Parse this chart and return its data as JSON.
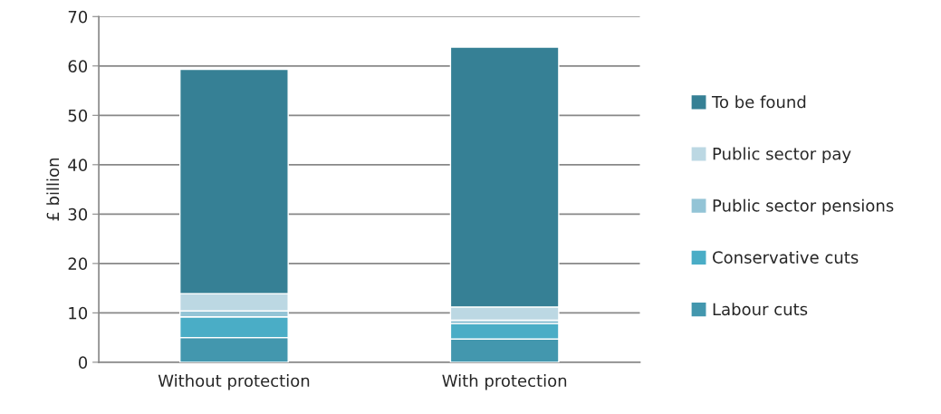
{
  "chart_data": {
    "type": "bar",
    "stacked": true,
    "ylabel": "£ billion",
    "categories": [
      "Without protection",
      "With protection"
    ],
    "series": [
      {
        "name": "Labour cuts",
        "color": "#4397ae",
        "values": [
          5.0,
          4.7
        ]
      },
      {
        "name": "Conservative cuts",
        "color": "#4aadc6",
        "values": [
          4.2,
          3.1
        ]
      },
      {
        "name": "Public sector pensions",
        "color": "#93c4d6",
        "values": [
          1.2,
          0.7
        ]
      },
      {
        "name": "Public sector pay",
        "color": "#bcd8e3",
        "values": [
          3.5,
          2.7
        ]
      },
      {
        "name": "To be found",
        "color": "#368095",
        "values": [
          45.4,
          52.6
        ]
      }
    ],
    "ylim": [
      0,
      70
    ],
    "yticks": [
      0,
      10,
      20,
      30,
      40,
      50,
      60,
      70
    ],
    "grid": "y",
    "legend": "right"
  }
}
